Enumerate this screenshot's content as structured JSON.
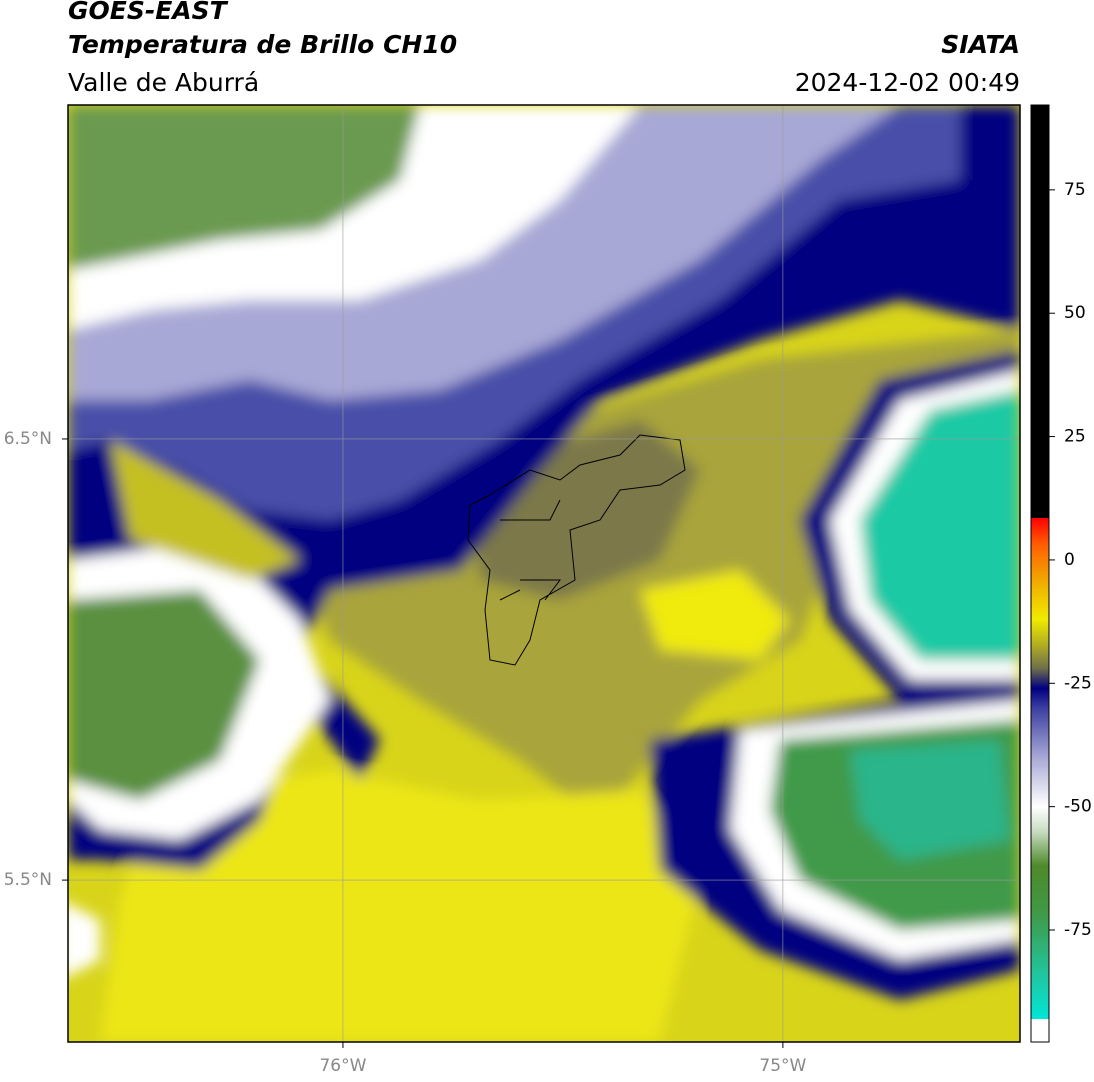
{
  "header": {
    "satellite": "GOES-EAST",
    "product": "Temperatura de Brillo CH10",
    "region": "Valle de Aburrá",
    "org": "SIATA",
    "datetime": "2024-12-02 00:49"
  },
  "chart_data": {
    "type": "map",
    "xlim": [
      -76.625,
      -74.461
    ],
    "ylim": [
      5.133,
      7.257
    ],
    "xticks": [
      {
        "value": -76,
        "label": "76°W"
      },
      {
        "value": -75,
        "label": "75°W"
      }
    ],
    "yticks": [
      {
        "value": 6.5,
        "label": "6.5°N"
      },
      {
        "value": 5.5,
        "label": "5.5°N"
      }
    ],
    "grid": true,
    "colorbar": {
      "lim": [
        -97.7,
        92.2
      ],
      "ticks": [
        75,
        50,
        25,
        0,
        -25,
        -50,
        -75
      ],
      "stops": [
        {
          "value": -97.7,
          "color": "#ffffff"
        },
        {
          "value": -93,
          "color": "#ffffff"
        },
        {
          "value": -93,
          "color": "#00e5d5"
        },
        {
          "value": -85,
          "color": "#1ec9a5"
        },
        {
          "value": -72,
          "color": "#3f9a48"
        },
        {
          "value": -62,
          "color": "#4e8a2a"
        },
        {
          "value": -55,
          "color": "#c9dcc3"
        },
        {
          "value": -50,
          "color": "#ffffff"
        },
        {
          "value": -40,
          "color": "#a8a8d6"
        },
        {
          "value": -30,
          "color": "#3b3fa0"
        },
        {
          "value": -26,
          "color": "#000080"
        },
        {
          "value": -22,
          "color": "#6e6e4a"
        },
        {
          "value": -17,
          "color": "#b5b020"
        },
        {
          "value": -12,
          "color": "#f0ea00"
        },
        {
          "value": -5,
          "color": "#f0b000"
        },
        {
          "value": 3,
          "color": "#ff6000"
        },
        {
          "value": 8.5,
          "color": "#ff0000"
        },
        {
          "value": 8.5,
          "color": "#000000"
        },
        {
          "value": 92.2,
          "color": "#000000"
        }
      ]
    }
  }
}
